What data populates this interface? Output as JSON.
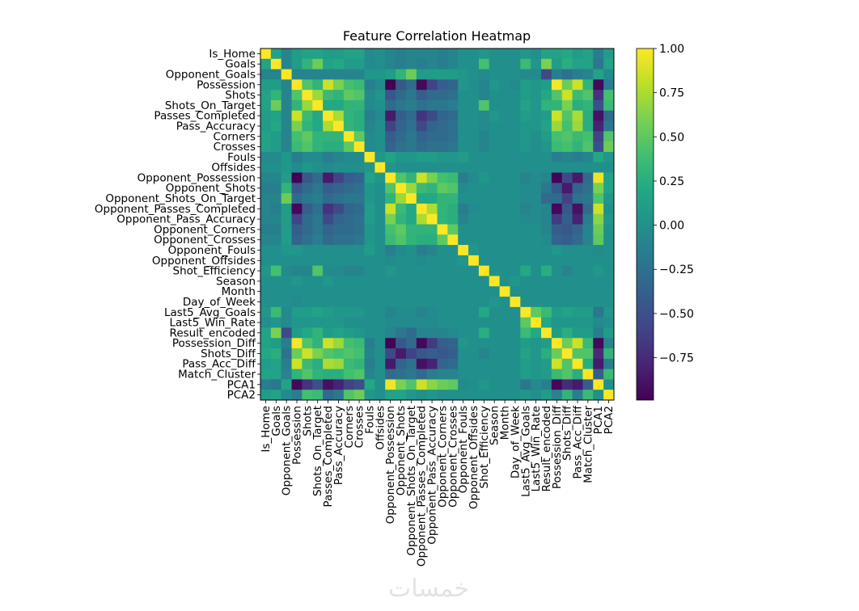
{
  "chart_data": {
    "type": "heatmap",
    "title": "Feature Correlation Heatmap",
    "colormap": "viridis",
    "vmin": -0.99,
    "vmax": 1.0,
    "colorbar_ticks": [
      1.0,
      0.75,
      0.5,
      0.25,
      0.0,
      -0.25,
      -0.5,
      -0.75
    ],
    "colorbar_tick_labels": [
      "1.00",
      "0.75",
      "0.50",
      "0.25",
      "0.00",
      "−0.25",
      "−0.50",
      "−0.75"
    ],
    "colorbar_placement": "right",
    "labels": [
      "Is_Home",
      "Goals",
      "Opponent_Goals",
      "Possession",
      "Shots",
      "Shots_On_Target",
      "Passes_Completed",
      "Pass_Accuracy",
      "Corners",
      "Crosses",
      "Fouls",
      "Offsides",
      "Opponent_Possession",
      "Opponent_Shots",
      "Opponent_Shots_On_Target",
      "Opponent_Passes_Completed",
      "Opponent_Pass_Accuracy",
      "Opponent_Corners",
      "Opponent_Crosses",
      "Opponent_Fouls",
      "Opponent_Offsides",
      "Shot_Efficiency",
      "Season",
      "Month",
      "Day_of_Week",
      "Last5_Avg_Goals",
      "Last5_Win_Rate",
      "Result_encoded",
      "Possession_Diff",
      "Shots_Diff",
      "Pass_Acc_Diff",
      "Match_Cluster",
      "PCA1",
      "PCA2"
    ],
    "diagonal": 1.0,
    "symmetric": true,
    "upper_triangle": [
      [
        0.15,
        -0.1,
        0.1,
        0.15,
        0.15,
        0.1,
        0.1,
        0.15,
        0.15,
        -0.05,
        0,
        -0.1,
        -0.15,
        -0.1,
        -0.1,
        -0.1,
        -0.15,
        -0.1,
        0,
        0,
        0.05,
        0,
        0,
        0,
        0.05,
        0,
        0.15,
        0.15,
        0.2,
        0.1,
        0.15,
        -0.15,
        0.1
      ],
      [
        -0.1,
        0.1,
        0.3,
        0.55,
        0.15,
        0.2,
        0.1,
        0.1,
        -0.05,
        0,
        -0.1,
        -0.15,
        -0.1,
        -0.15,
        -0.1,
        -0.15,
        -0.1,
        0,
        0,
        0.4,
        0,
        0,
        0,
        0.35,
        0.05,
        0.6,
        0.1,
        0.25,
        0.15,
        0.15,
        -0.2,
        0.15
      ],
      [
        -0.1,
        -0.1,
        -0.1,
        -0.1,
        -0.1,
        -0.1,
        -0.1,
        0.05,
        0.05,
        0.1,
        0.3,
        0.55,
        0.1,
        0.1,
        0.1,
        0.1,
        0.05,
        0,
        -0.05,
        0,
        0,
        0,
        -0.05,
        -0.05,
        -0.55,
        -0.15,
        -0.25,
        -0.15,
        -0.1,
        0.15,
        -0.05
      ],
      [
        0.45,
        0.3,
        0.85,
        0.6,
        0.4,
        0.35,
        -0.15,
        -0.05,
        -0.99,
        -0.45,
        -0.3,
        -0.95,
        -0.6,
        -0.4,
        -0.35,
        0.05,
        0,
        -0.1,
        0.05,
        0,
        -0.05,
        0.1,
        0.05,
        0.1,
        0.98,
        0.55,
        0.85,
        0.3,
        -0.95,
        -0.15
      ],
      [
        0.7,
        0.35,
        0.3,
        0.5,
        0.45,
        -0.05,
        0.05,
        -0.45,
        -0.3,
        -0.2,
        -0.4,
        -0.3,
        -0.3,
        -0.25,
        0,
        0,
        -0.1,
        0,
        0,
        0,
        0.1,
        0.05,
        0.2,
        0.45,
        0.85,
        0.35,
        0.45,
        -0.7,
        0.4
      ],
      [
        0.2,
        0.2,
        0.3,
        0.3,
        -0.05,
        0,
        -0.3,
        -0.2,
        -0.15,
        -0.25,
        -0.2,
        -0.2,
        -0.15,
        0,
        0,
        0.45,
        0,
        0,
        0,
        0.15,
        0.05,
        0.3,
        0.3,
        0.6,
        0.25,
        0.3,
        -0.5,
        0.35
      ],
      [
        0.75,
        0.3,
        0.25,
        -0.15,
        -0.05,
        -0.85,
        -0.4,
        -0.3,
        -0.7,
        -0.55,
        -0.35,
        -0.3,
        0,
        0,
        -0.05,
        0.05,
        0,
        0,
        0.1,
        0.05,
        0.1,
        0.85,
        0.45,
        0.75,
        0.25,
        -0.9,
        -0.3
      ],
      [
        0.3,
        0.25,
        -0.1,
        0,
        -0.6,
        -0.35,
        -0.25,
        -0.55,
        -0.35,
        -0.3,
        -0.25,
        0,
        0,
        -0.05,
        0,
        0,
        0,
        0.05,
        0.05,
        0.15,
        0.7,
        0.4,
        0.7,
        0.25,
        -0.8,
        -0.2
      ],
      [
        0.5,
        -0.05,
        0,
        -0.4,
        -0.3,
        -0.2,
        -0.35,
        -0.3,
        -0.3,
        -0.25,
        0,
        0,
        -0.1,
        0,
        0,
        0,
        0.05,
        0,
        0.1,
        0.4,
        0.45,
        0.35,
        0.4,
        -0.6,
        0.45
      ],
      [
        -0.05,
        0,
        -0.35,
        -0.25,
        -0.2,
        -0.3,
        -0.25,
        -0.25,
        -0.2,
        0,
        0,
        -0.1,
        0,
        0,
        0,
        0.05,
        0,
        0.05,
        0.35,
        0.4,
        0.3,
        0.45,
        -0.5,
        0.55
      ],
      [
        0.05,
        0.15,
        0.05,
        0.05,
        0.1,
        0.1,
        0.05,
        0.05,
        0.1,
        0,
        0,
        0,
        0,
        0,
        0,
        0,
        0,
        -0.15,
        -0.1,
        -0.15,
        -0.1,
        0.2,
        0.05
      ],
      [
        0.05,
        0,
        0,
        0,
        0,
        0,
        0,
        0,
        0,
        0,
        0,
        0,
        0,
        0,
        0,
        0,
        0,
        0,
        0,
        0,
        0,
        0
      ],
      [
        0.45,
        0.3,
        0.85,
        0.6,
        0.4,
        0.35,
        -0.15,
        -0.05,
        0.05,
        0,
        0,
        0,
        -0.1,
        -0.05,
        -0.1,
        -0.98,
        -0.55,
        -0.85,
        -0.3,
        0.95,
        0.15
      ],
      [
        0.7,
        0.35,
        0.3,
        0.5,
        0.45,
        -0.05,
        0,
        0,
        0,
        0,
        0,
        -0.05,
        -0.05,
        -0.2,
        -0.45,
        -0.85,
        -0.35,
        -0.25,
        0.6,
        0.15
      ],
      [
        0.2,
        0.2,
        0.3,
        0.3,
        0,
        0,
        0,
        0,
        0,
        0,
        -0.05,
        -0.05,
        -0.3,
        -0.3,
        -0.6,
        -0.25,
        -0.2,
        0.45,
        0.05
      ],
      [
        0.75,
        0.3,
        0.25,
        -0.15,
        -0.05,
        0,
        0,
        0,
        0,
        -0.1,
        -0.05,
        -0.1,
        -0.95,
        -0.45,
        -0.9,
        -0.3,
        0.85,
        0
      ],
      [
        0.3,
        0.25,
        -0.1,
        0,
        0,
        0,
        0,
        0,
        -0.05,
        -0.05,
        -0.1,
        -0.65,
        -0.4,
        -0.8,
        -0.15,
        0.65,
        0.05
      ],
      [
        0.5,
        0,
        0,
        0,
        0,
        0,
        0,
        0,
        0,
        -0.1,
        -0.4,
        -0.45,
        -0.35,
        -0.1,
        0.55,
        0
      ],
      [
        0,
        0,
        0,
        0,
        0,
        0,
        0,
        0,
        -0.05,
        -0.35,
        -0.4,
        -0.3,
        -0.1,
        0.5,
        0
      ],
      [
        0.05,
        0,
        0,
        0,
        0,
        0,
        0,
        0,
        0.05,
        0,
        0,
        0,
        -0.05,
        0
      ],
      [
        0,
        0,
        0,
        0,
        0,
        0,
        0,
        0,
        0,
        0,
        0,
        0,
        0
      ],
      [
        0,
        0,
        0,
        0.2,
        0,
        0.25,
        0,
        -0.1,
        0,
        0,
        0.05,
        0
      ],
      [
        0,
        0.05,
        0,
        0,
        0,
        0,
        0,
        0,
        0,
        0,
        0
      ],
      [
        0,
        0,
        0,
        0,
        0,
        0,
        0,
        0,
        0,
        0
      ],
      [
        0,
        0,
        0,
        0,
        0,
        0,
        0,
        0,
        0
      ],
      [
        0.5,
        0.35,
        0.1,
        0.15,
        0.1,
        0.1,
        -0.2,
        0.05
      ],
      [
        0.2,
        0.05,
        0.05,
        0.05,
        0.05,
        -0.05,
        0
      ],
      [
        0.1,
        0.25,
        0.1,
        0.1,
        -0.15,
        0.1
      ],
      [
        0.55,
        0.85,
        0.35,
        -0.95,
        -0.1
      ],
      [
        0.45,
        0.45,
        -0.75,
        0.3
      ],
      [
        0.25,
        -0.85,
        -0.15
      ],
      [
        -0.4,
        0.35
      ],
      [
        0
      ],
      []
    ]
  },
  "watermark": "خمسات"
}
